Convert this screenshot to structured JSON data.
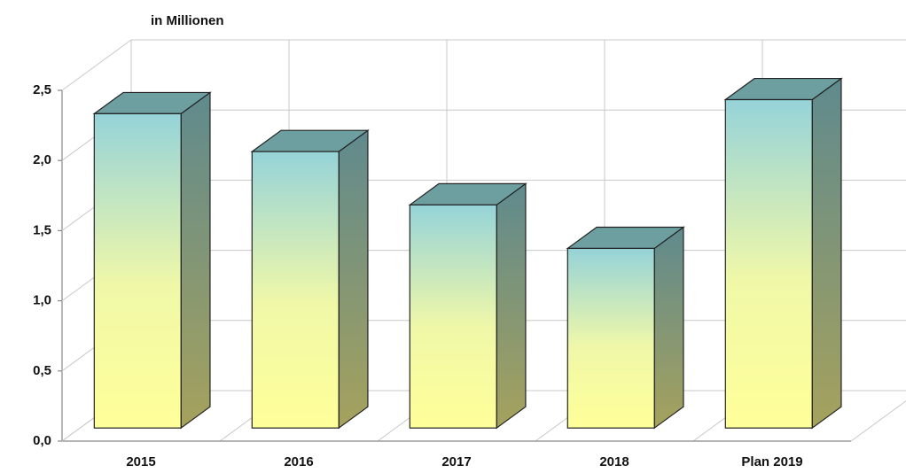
{
  "chart_data": {
    "type": "bar",
    "title": "in Millionen",
    "categories": [
      "2015",
      "2016",
      "2017",
      "2018",
      "Plan 2019"
    ],
    "values": [
      2.24,
      1.97,
      1.59,
      1.28,
      2.34
    ],
    "ylim": [
      0,
      2.5
    ],
    "yticks": [
      {
        "value": 0,
        "label": "0,0"
      },
      {
        "value": 0.5,
        "label": "0,5"
      },
      {
        "value": 1,
        "label": "1,0"
      },
      {
        "value": 1.5,
        "label": "1,5"
      },
      {
        "value": 2,
        "label": "2,0"
      },
      {
        "value": 2.5,
        "label": "2,5"
      }
    ],
    "grid": true
  }
}
